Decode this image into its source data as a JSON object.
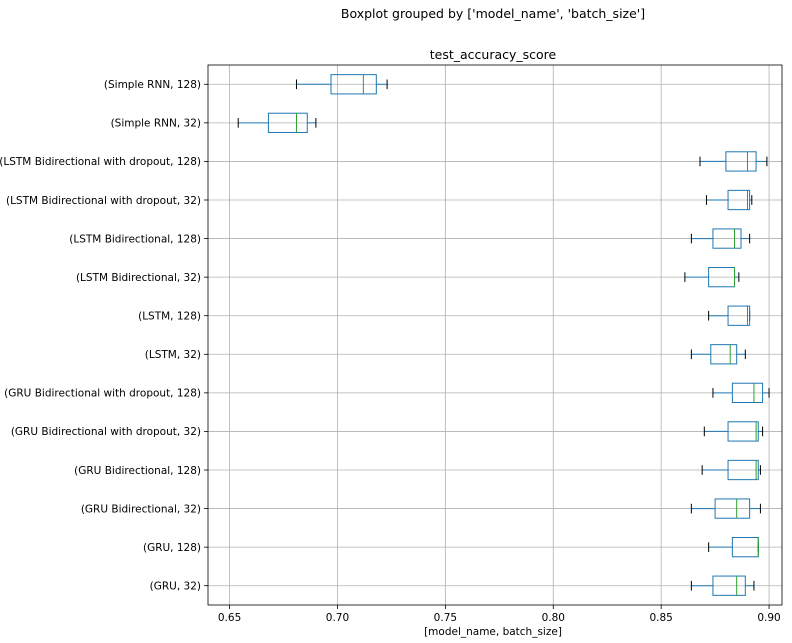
{
  "chart_data": {
    "type": "boxplot",
    "suptitle": "Boxplot grouped by ['model_name', 'batch_size']",
    "title": "test_accuracy_score",
    "xlabel": "[model_name, batch_size]",
    "xlim": [
      0.64,
      0.906
    ],
    "xticks": [
      0.65,
      0.7,
      0.75,
      0.8,
      0.85,
      0.9
    ],
    "xtick_labels": [
      "0.65",
      "0.70",
      "0.75",
      "0.80",
      "0.85",
      "0.90"
    ],
    "grid": true,
    "colors": {
      "box": "#1f77b4",
      "median": "#2ca02c",
      "grid": "#b0b0b0"
    },
    "boxes": [
      {
        "label": "(Simple RNN, 128)",
        "whislo": 0.681,
        "q1": 0.697,
        "med": 0.712,
        "q3": 0.718,
        "whishi": 0.723
      },
      {
        "label": "(Simple RNN, 32)",
        "whislo": 0.654,
        "q1": 0.668,
        "med": 0.681,
        "q3": 0.686,
        "whishi": 0.69
      },
      {
        "label": "(LSTM Bidirectional with dropout, 128)",
        "whislo": 0.868,
        "q1": 0.88,
        "med": 0.89,
        "q3": 0.894,
        "whishi": 0.899
      },
      {
        "label": "(LSTM Bidirectional with dropout, 32)",
        "whislo": 0.871,
        "q1": 0.881,
        "med": 0.89,
        "q3": 0.891,
        "whishi": 0.892
      },
      {
        "label": "(LSTM Bidirectional, 128)",
        "whislo": 0.864,
        "q1": 0.874,
        "med": 0.884,
        "q3": 0.887,
        "whishi": 0.891
      },
      {
        "label": "(LSTM Bidirectional, 32)",
        "whislo": 0.861,
        "q1": 0.872,
        "med": 0.884,
        "q3": 0.884,
        "whishi": 0.886
      },
      {
        "label": "(LSTM, 128)",
        "whislo": 0.872,
        "q1": 0.881,
        "med": 0.89,
        "q3": 0.891,
        "whishi": 0.891
      },
      {
        "label": "(LSTM, 32)",
        "whislo": 0.864,
        "q1": 0.873,
        "med": 0.882,
        "q3": 0.885,
        "whishi": 0.889
      },
      {
        "label": "(GRU Bidirectional with dropout, 128)",
        "whislo": 0.874,
        "q1": 0.883,
        "med": 0.893,
        "q3": 0.897,
        "whishi": 0.9
      },
      {
        "label": "(GRU Bidirectional with dropout, 32)",
        "whislo": 0.87,
        "q1": 0.881,
        "med": 0.894,
        "q3": 0.895,
        "whishi": 0.897
      },
      {
        "label": "(GRU Bidirectional, 128)",
        "whislo": 0.869,
        "q1": 0.881,
        "med": 0.894,
        "q3": 0.895,
        "whishi": 0.896
      },
      {
        "label": "(GRU Bidirectional, 32)",
        "whislo": 0.864,
        "q1": 0.875,
        "med": 0.885,
        "q3": 0.891,
        "whishi": 0.896
      },
      {
        "label": "(GRU, 128)",
        "whislo": 0.872,
        "q1": 0.883,
        "med": 0.895,
        "q3": 0.895,
        "whishi": 0.895
      },
      {
        "label": "(GRU, 32)",
        "whislo": 0.864,
        "q1": 0.874,
        "med": 0.885,
        "q3": 0.889,
        "whishi": 0.893
      }
    ]
  }
}
